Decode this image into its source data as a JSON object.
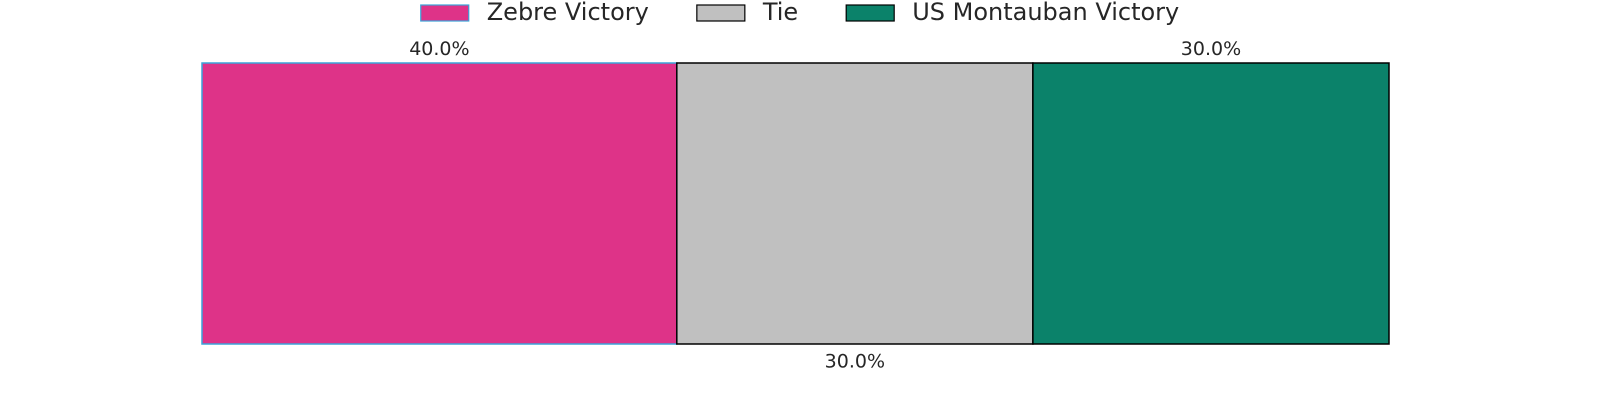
{
  "chart_data": {
    "type": "bar",
    "orientation": "horizontal",
    "stacked": true,
    "title": "",
    "xlabel": "",
    "ylabel": "",
    "axes_visible": false,
    "grid": false,
    "legend_position": "top-center",
    "xlim": [
      0,
      100
    ],
    "series": [
      {
        "name": "Zebre Victory",
        "value": 40.0,
        "label": "40.0%",
        "color": "#DE3388",
        "edge_color": "#3BA3D9",
        "label_position": "above"
      },
      {
        "name": "Tie",
        "value": 30.0,
        "label": "30.0%",
        "color": "#C0C0C0",
        "edge_color": "#000000",
        "label_position": "below"
      },
      {
        "name": "US Montauban Victory",
        "value": 30.0,
        "label": "30.0%",
        "color": "#0B826A",
        "edge_color": "#000000",
        "label_position": "above"
      }
    ]
  }
}
